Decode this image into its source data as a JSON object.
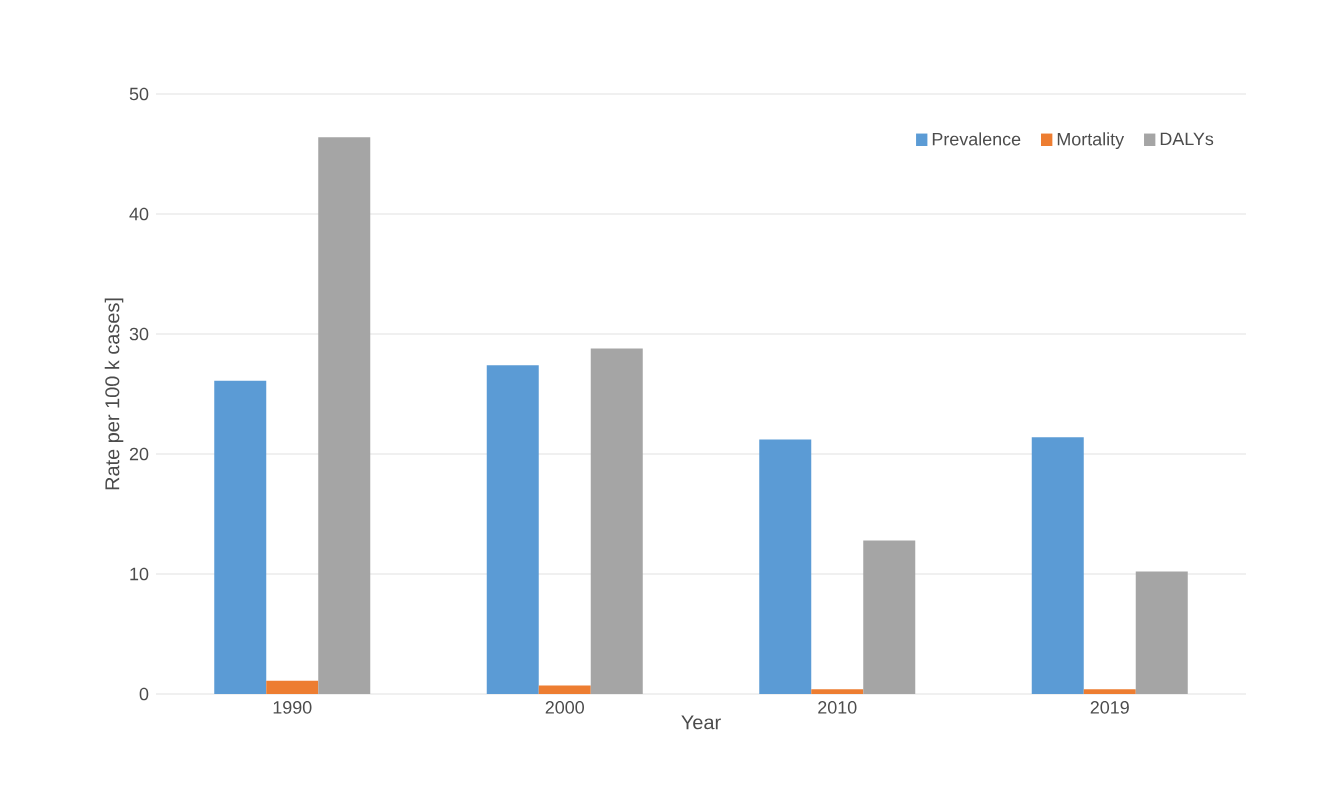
{
  "chart_data": {
    "type": "bar",
    "xlabel": "Year",
    "ylabel": "Rate  per 100 k cases]",
    "categories": [
      "1990",
      "2000",
      "2010",
      "2019"
    ],
    "series": [
      {
        "name": "Prevalence",
        "color": "#5b9bd5",
        "values": [
          26.1,
          27.4,
          21.2,
          21.4
        ]
      },
      {
        "name": "Mortality",
        "color": "#ed7d31",
        "values": [
          1.1,
          0.7,
          0.4,
          0.4
        ]
      },
      {
        "name": "DALYs",
        "color": "#a5a5a5",
        "values": [
          46.4,
          28.8,
          12.8,
          10.2
        ]
      }
    ],
    "ylim": [
      0,
      50
    ],
    "yticks": [
      0,
      10,
      20,
      30,
      40,
      50
    ],
    "grid": "y",
    "legend": "top right"
  }
}
